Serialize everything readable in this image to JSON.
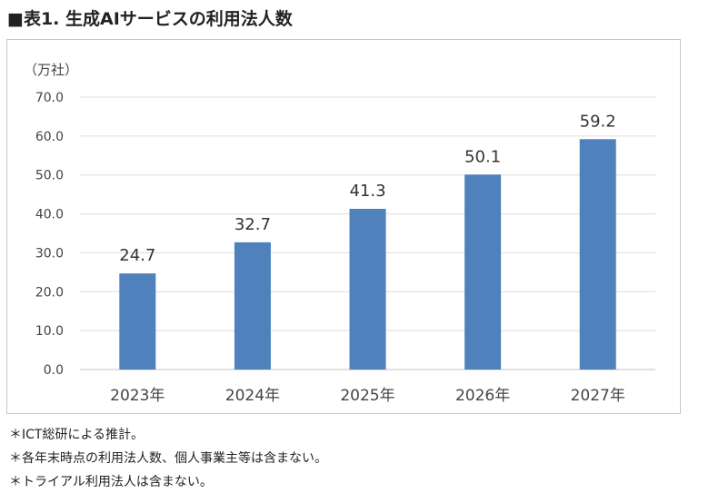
{
  "title": "■表1. 生成AIサービスの利用法人数",
  "chart_data": {
    "type": "bar",
    "unit_label": "（万社）",
    "categories": [
      "2023年",
      "2024年",
      "2025年",
      "2026年",
      "2027年"
    ],
    "values": [
      24.7,
      32.7,
      41.3,
      50.1,
      59.2
    ],
    "data_labels": [
      "24.7",
      "32.7",
      "41.3",
      "50.1",
      "59.2"
    ],
    "ylim": [
      0,
      70
    ],
    "yticks": [
      "0.0",
      "10.0",
      "20.0",
      "30.0",
      "40.0",
      "50.0",
      "60.0",
      "70.0"
    ],
    "grid": true,
    "bar_color": "#4f81bd"
  },
  "notes": [
    "＊ICT総研による推計。",
    "＊各年末時点の利用法人数、個人事業主等は含まない。",
    "＊トライアル利用法人は含まない。"
  ]
}
